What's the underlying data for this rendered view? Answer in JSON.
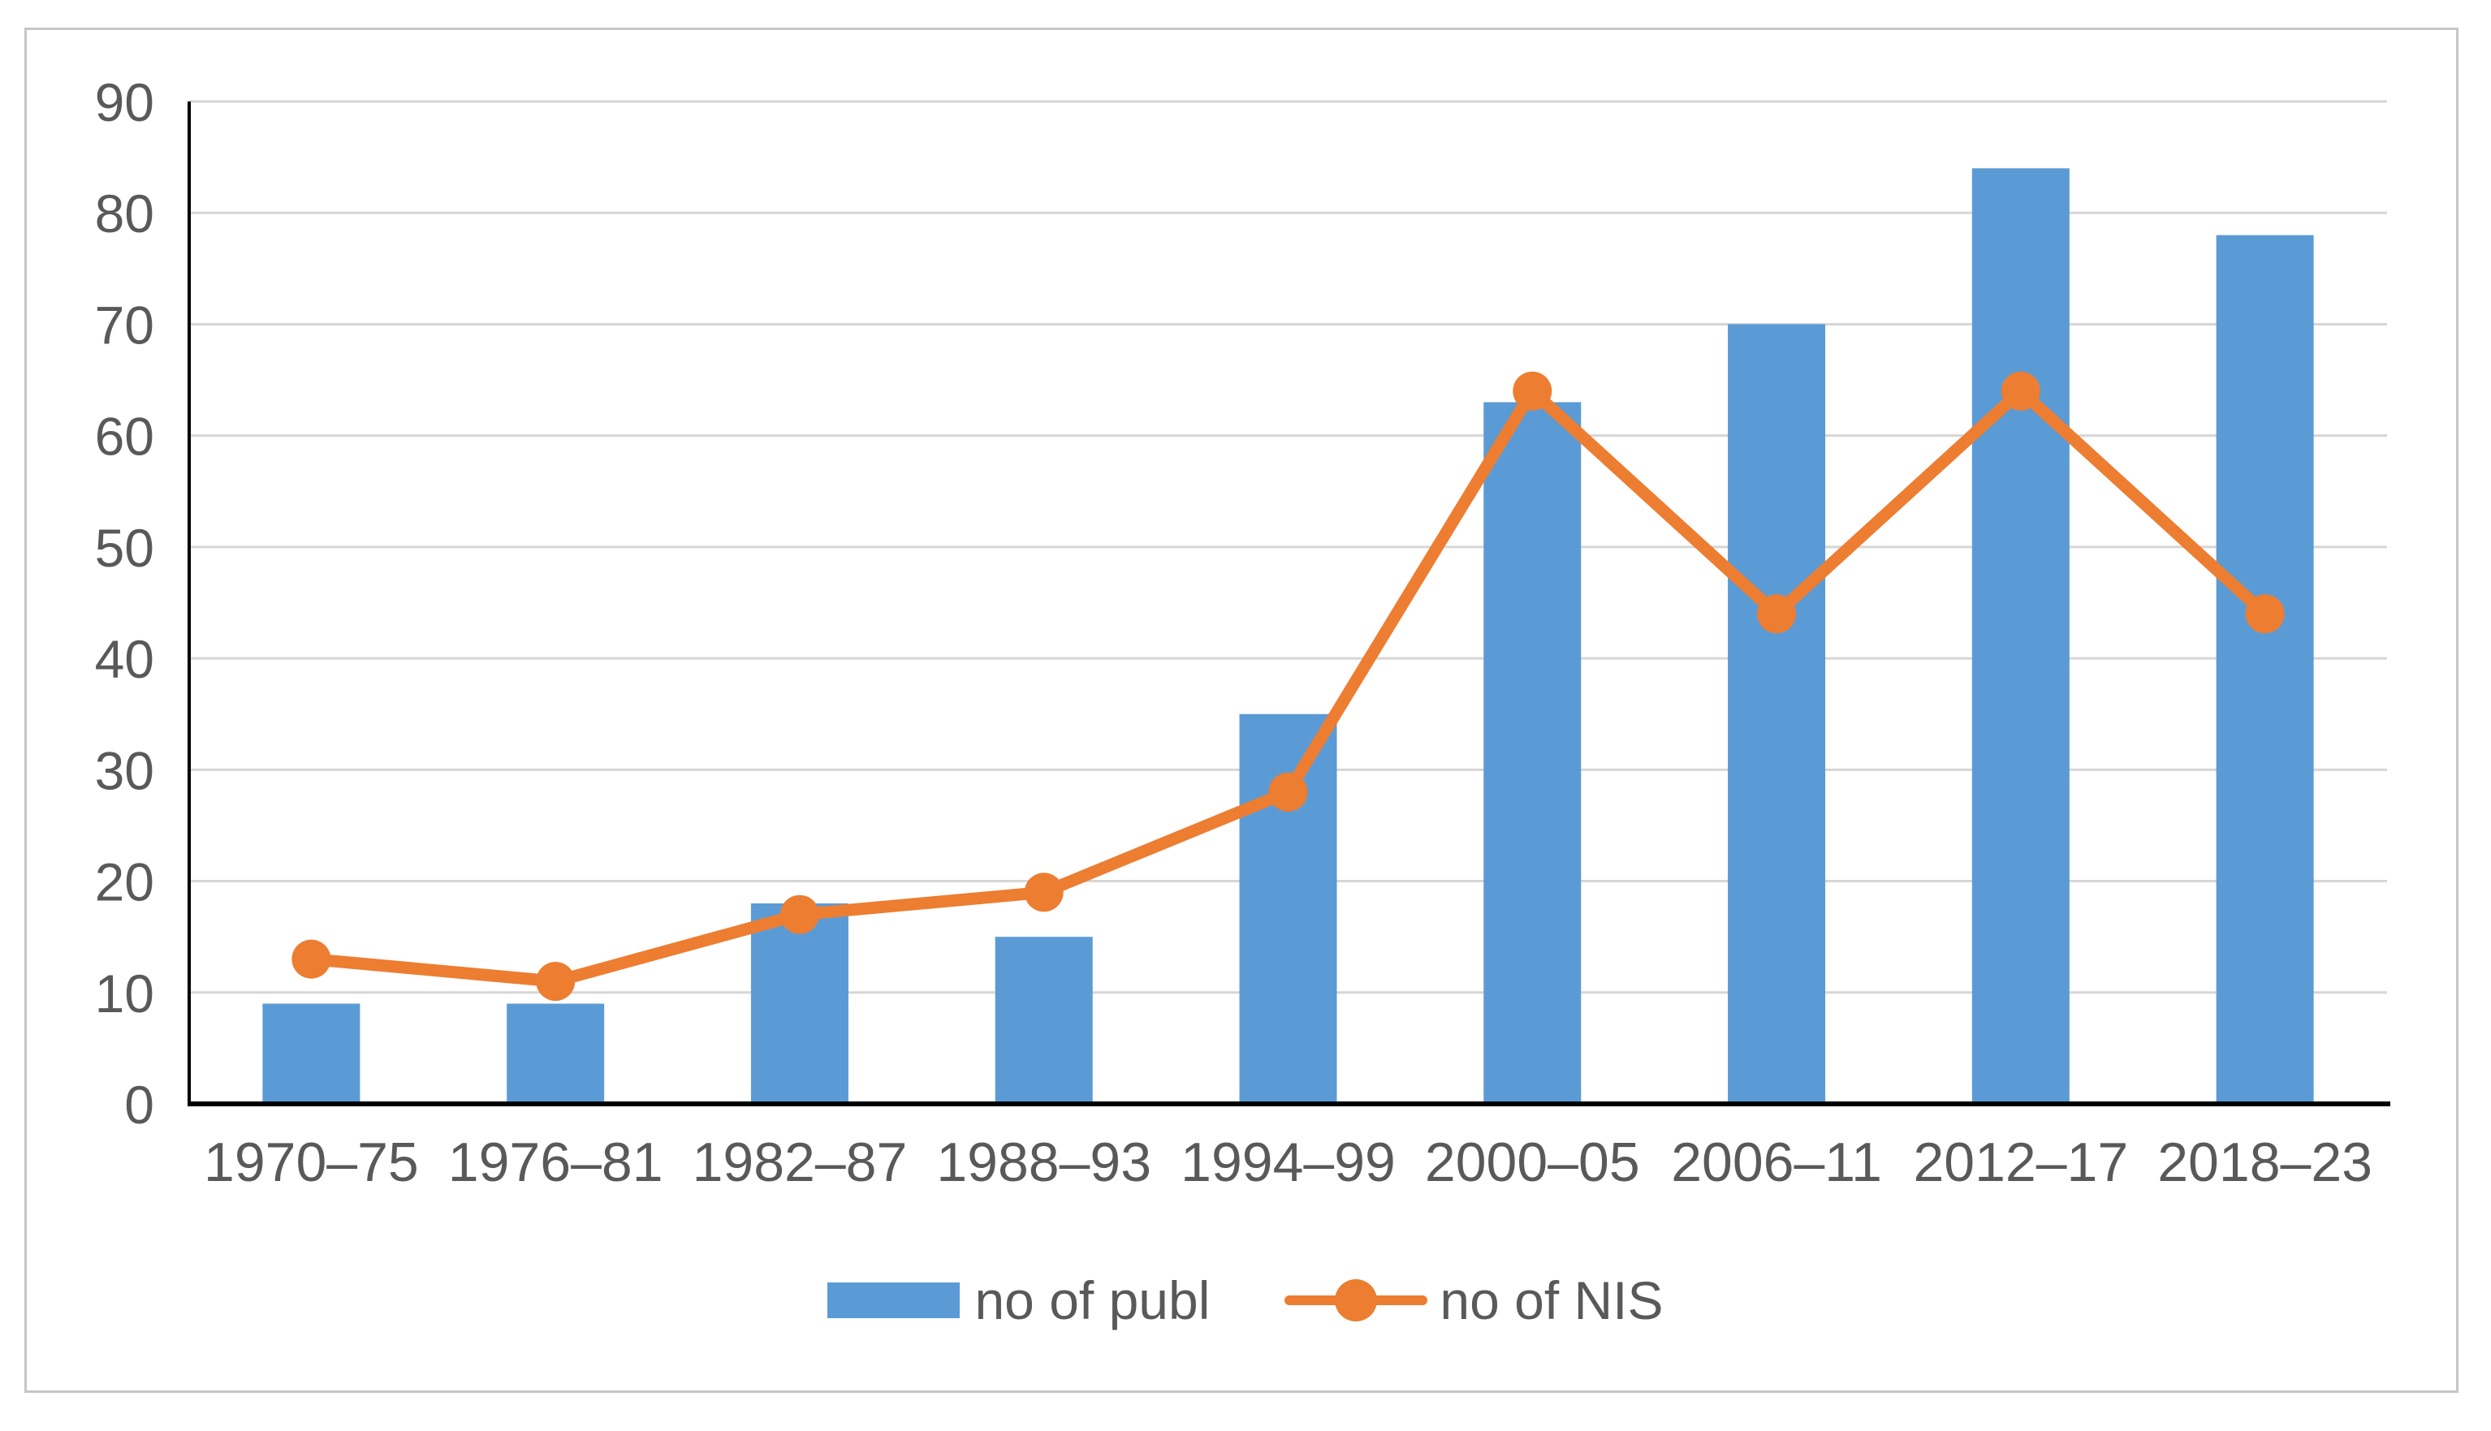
{
  "chart_data": {
    "type": "combo",
    "title": "",
    "xlabel": "",
    "ylabel": "",
    "categories": [
      "1970–75",
      "1976–81",
      "1982–87",
      "1988–93",
      "1994–99",
      "2000–05",
      "2006–11",
      "2012–17",
      "2018–23"
    ],
    "series": [
      {
        "name": "no of publ",
        "type": "bar",
        "color": "#5B9BD5",
        "values": [
          9,
          9,
          18,
          15,
          35,
          63,
          70,
          84,
          78
        ]
      },
      {
        "name": "no of NIS",
        "type": "line",
        "color": "#ED7D31",
        "values": [
          13,
          11,
          17,
          19,
          28,
          64,
          44,
          64,
          44
        ]
      }
    ],
    "ylim": [
      0,
      90
    ],
    "yticks": [
      0,
      10,
      20,
      30,
      40,
      50,
      60,
      70,
      80,
      90
    ],
    "grid": true,
    "legend_position": "bottom",
    "colors": {
      "bar": "#5B9BD5",
      "line": "#ED7D31",
      "gridline": "#D6D6D6",
      "axis": "#000000",
      "text": "#595959",
      "frame_border": "#C6C6C6",
      "background": "#FFFFFF"
    }
  }
}
